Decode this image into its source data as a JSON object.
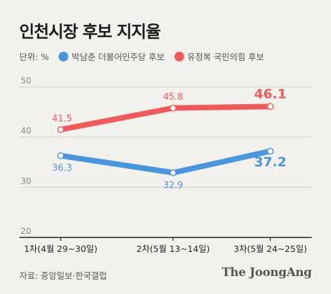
{
  "title": "인천시장 후보 지지율",
  "legend": {
    "unit_label": "단위: %"
  },
  "chart_data": {
    "type": "line",
    "title": "인천시장 후보 지지율",
    "xlabel": "",
    "ylabel": "",
    "unit": "%",
    "categories": [
      "1차(4월 29~30일)",
      "2차(5월 13~14일)",
      "3차(5월 24~25일)"
    ],
    "ylim": [
      20,
      50
    ],
    "yticks": [
      20,
      30,
      40,
      50
    ],
    "grid": true,
    "legend_position": "top-left",
    "series": [
      {
        "name": "박남춘 더불어민주당 후보",
        "color": "#4a95dc",
        "values": [
          36.3,
          32.9,
          37.2
        ],
        "labels": [
          "36.3",
          "32.9",
          "37.2"
        ]
      },
      {
        "name": "유정복 국민의힘 후보",
        "color": "#ef5b5b",
        "values": [
          41.5,
          45.8,
          46.1
        ],
        "labels": [
          "41.5",
          "45.8",
          "46.1"
        ]
      }
    ]
  },
  "source": "자료: 중앙일보·한국갤럽",
  "brand": "The JoongAng"
}
